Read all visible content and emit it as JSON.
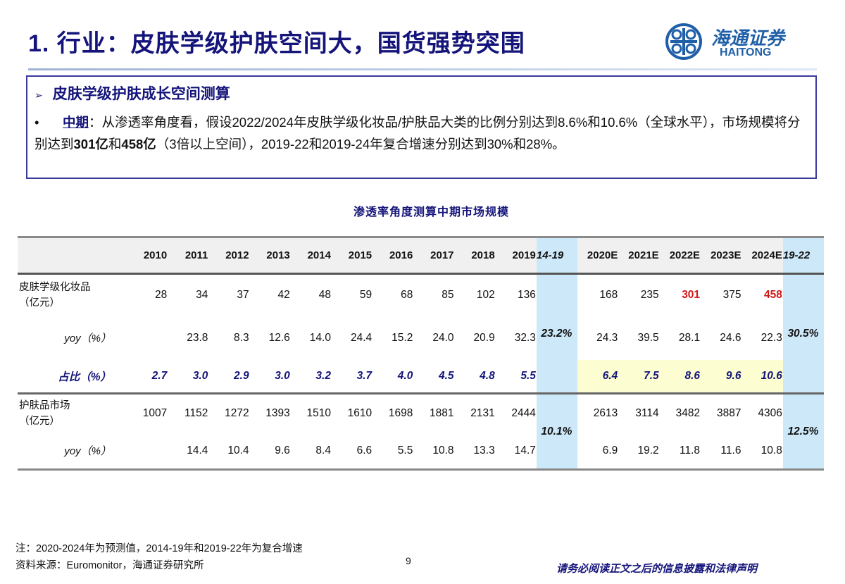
{
  "header": {
    "title": "1. 行业：皮肤学级护肤空间大，国货强势突围",
    "logo_cn": "海通证券",
    "logo_en": "HAITONG"
  },
  "summary": {
    "heading": "皮肤学级护肤成长空间测算",
    "lead": "中期",
    "text_1": "：从渗透率角度看，假设2022/2024年皮肤学级化妆品/护肤品大类的比例分别达到8.6%和10.6%（全球水平），市场规模将分别达到",
    "bold_1": "301亿",
    "text_2": "和",
    "bold_2": "458亿",
    "text_3": "（3倍以上空间），2019-22和2019-24年复合增速分别达到30%和28%。"
  },
  "table": {
    "title": "渗透率角度测算中期市场规模",
    "hist_years": [
      "2010",
      "2011",
      "2012",
      "2013",
      "2014",
      "2015",
      "2016",
      "2017",
      "2018",
      "2019"
    ],
    "cagr1_label": "14-19",
    "fc_years": [
      "2020E",
      "2021E",
      "2022E",
      "2023E",
      "2024E"
    ],
    "cagr2_label": "19-22",
    "rows": {
      "derm": {
        "label": "皮肤学级化妆品",
        "unit": "（亿元）",
        "hist": [
          "28",
          "34",
          "37",
          "42",
          "48",
          "59",
          "68",
          "85",
          "102",
          "136"
        ],
        "fc": [
          "168",
          "235",
          "301",
          "375",
          "458"
        ]
      },
      "derm_yoy": {
        "label": "yoy（%）",
        "hist": [
          "",
          "23.8",
          "8.3",
          "12.6",
          "14.0",
          "24.4",
          "15.2",
          "24.0",
          "20.9",
          "32.3"
        ],
        "fc": [
          "24.3",
          "39.5",
          "28.1",
          "24.6",
          "22.3"
        ]
      },
      "share": {
        "label": "占比（%）",
        "hist": [
          "2.7",
          "3.0",
          "2.9",
          "3.0",
          "3.2",
          "3.7",
          "4.0",
          "4.5",
          "4.8",
          "5.5"
        ],
        "fc": [
          "6.4",
          "7.5",
          "8.6",
          "9.6",
          "10.6"
        ]
      },
      "skincare": {
        "label": "护肤品市场",
        "unit": "（亿元）",
        "hist": [
          "1007",
          "1152",
          "1272",
          "1393",
          "1510",
          "1610",
          "1698",
          "1881",
          "2131",
          "2444"
        ],
        "fc": [
          "2613",
          "3114",
          "3482",
          "3887",
          "4306"
        ]
      },
      "skincare_yoy": {
        "label": "yoy（%）",
        "hist": [
          "",
          "14.4",
          "10.4",
          "9.6",
          "8.4",
          "6.6",
          "5.5",
          "10.8",
          "13.3",
          "14.7"
        ],
        "fc": [
          "6.9",
          "19.2",
          "11.8",
          "11.6",
          "10.8"
        ]
      }
    },
    "cagr": {
      "derm_14_19": "23.2%",
      "derm_19_22": "30.5%",
      "skincare_14_19": "10.1%",
      "skincare_19_22": "12.5%"
    },
    "highlight_red": [
      "2022E",
      "2024E"
    ]
  },
  "footer": {
    "note": "注：2020-2024年为预测值，2014-19年和2019-22年为复合增速",
    "source": "资料来源：Euromonitor，海通证券研究所",
    "page": "9",
    "disclaimer": "请务必阅读正文之后的信息披露和法律声明"
  },
  "colors": {
    "title": "#14147a",
    "cagr_band": "#cce8f9",
    "forecast_share_band": "#fdfdd2",
    "highlight": "#d01818"
  }
}
